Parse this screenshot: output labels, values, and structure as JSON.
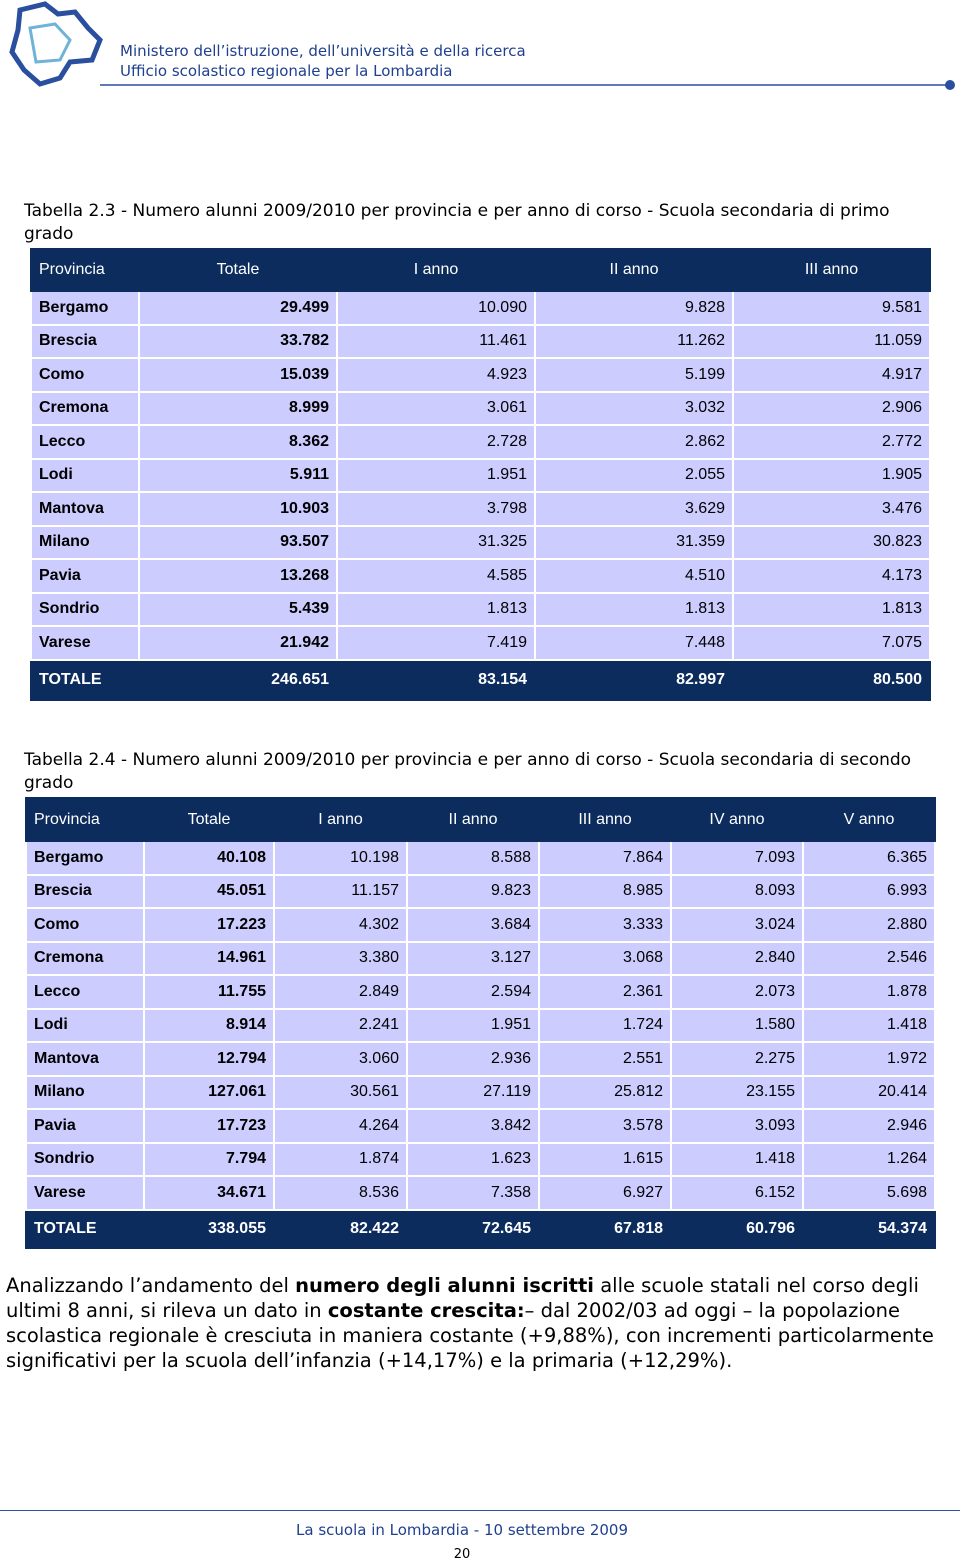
{
  "header": {
    "lines": [
      "Ministero dell’istruzione, dell’università e della ricerca",
      "Ufficio scolastico regionale per la Lombardia"
    ]
  },
  "tables": [
    {
      "caption": "Tabella 2.3 - Numero alunni 2009/2010 per provincia e per anno di corso - Scuola secondaria di primo grado",
      "columns": [
        "Provincia",
        "Totale",
        "I anno",
        "II anno",
        "III anno"
      ],
      "rows": [
        [
          "Bergamo",
          "29.499",
          "10.090",
          "9.828",
          "9.581"
        ],
        [
          "Brescia",
          "33.782",
          "11.461",
          "11.262",
          "11.059"
        ],
        [
          "Como",
          "15.039",
          "4.923",
          "5.199",
          "4.917"
        ],
        [
          "Cremona",
          "8.999",
          "3.061",
          "3.032",
          "2.906"
        ],
        [
          "Lecco",
          "8.362",
          "2.728",
          "2.862",
          "2.772"
        ],
        [
          "Lodi",
          "5.911",
          "1.951",
          "2.055",
          "1.905"
        ],
        [
          "Mantova",
          "10.903",
          "3.798",
          "3.629",
          "3.476"
        ],
        [
          "Milano",
          "93.507",
          "31.325",
          "31.359",
          "30.823"
        ],
        [
          "Pavia",
          "13.268",
          "4.585",
          "4.510",
          "4.173"
        ],
        [
          "Sondrio",
          "5.439",
          "1.813",
          "1.813",
          "1.813"
        ],
        [
          "Varese",
          "21.942",
          "7.419",
          "7.448",
          "7.075"
        ]
      ],
      "total": [
        "TOTALE",
        "246.651",
        "83.154",
        "82.997",
        "80.500"
      ]
    },
    {
      "caption": "Tabella 2.4 - Numero alunni 2009/2010 per provincia e per anno di corso - Scuola secondaria di secondo grado",
      "columns": [
        "Provincia",
        "Totale",
        "I anno",
        "II anno",
        "III anno",
        "IV anno",
        "V anno"
      ],
      "rows": [
        [
          "Bergamo",
          "40.108",
          "10.198",
          "8.588",
          "7.864",
          "7.093",
          "6.365"
        ],
        [
          "Brescia",
          "45.051",
          "11.157",
          "9.823",
          "8.985",
          "8.093",
          "6.993"
        ],
        [
          "Como",
          "17.223",
          "4.302",
          "3.684",
          "3.333",
          "3.024",
          "2.880"
        ],
        [
          "Cremona",
          "14.961",
          "3.380",
          "3.127",
          "3.068",
          "2.840",
          "2.546"
        ],
        [
          "Lecco",
          "11.755",
          "2.849",
          "2.594",
          "2.361",
          "2.073",
          "1.878"
        ],
        [
          "Lodi",
          "8.914",
          "2.241",
          "1.951",
          "1.724",
          "1.580",
          "1.418"
        ],
        [
          "Mantova",
          "12.794",
          "3.060",
          "2.936",
          "2.551",
          "2.275",
          "1.972"
        ],
        [
          "Milano",
          "127.061",
          "30.561",
          "27.119",
          "25.812",
          "23.155",
          "20.414"
        ],
        [
          "Pavia",
          "17.723",
          "4.264",
          "3.842",
          "3.578",
          "3.093",
          "2.946"
        ],
        [
          "Sondrio",
          "7.794",
          "1.874",
          "1.623",
          "1.615",
          "1.418",
          "1.264"
        ],
        [
          "Varese",
          "34.671",
          "8.536",
          "7.358",
          "6.927",
          "6.152",
          "5.698"
        ]
      ],
      "total": [
        "TOTALE",
        "338.055",
        "82.422",
        "72.645",
        "67.818",
        "60.796",
        "54.374"
      ]
    }
  ],
  "paragraph": [
    {
      "text": "Analizzando l’andamento del "
    },
    {
      "text": "numero degli alunni iscritti",
      "bold": true
    },
    {
      "text": " alle scuole statali nel corso degli ultimi 8 anni, si rileva un dato in "
    },
    {
      "text": "costante crescita:",
      "bold": true
    },
    {
      "text": "– dal 2002/03 ad oggi – la popolazione scolastica regionale è cresciuta in maniera costante (+9,88%), con incrementi particolarmente significativi per la scuola dell’infanzia (+14,17%) e la primaria (+12,29%)."
    }
  ],
  "footer": {
    "text": "La scuola in Lombardia - 10 settembre 2009",
    "page": "20"
  }
}
